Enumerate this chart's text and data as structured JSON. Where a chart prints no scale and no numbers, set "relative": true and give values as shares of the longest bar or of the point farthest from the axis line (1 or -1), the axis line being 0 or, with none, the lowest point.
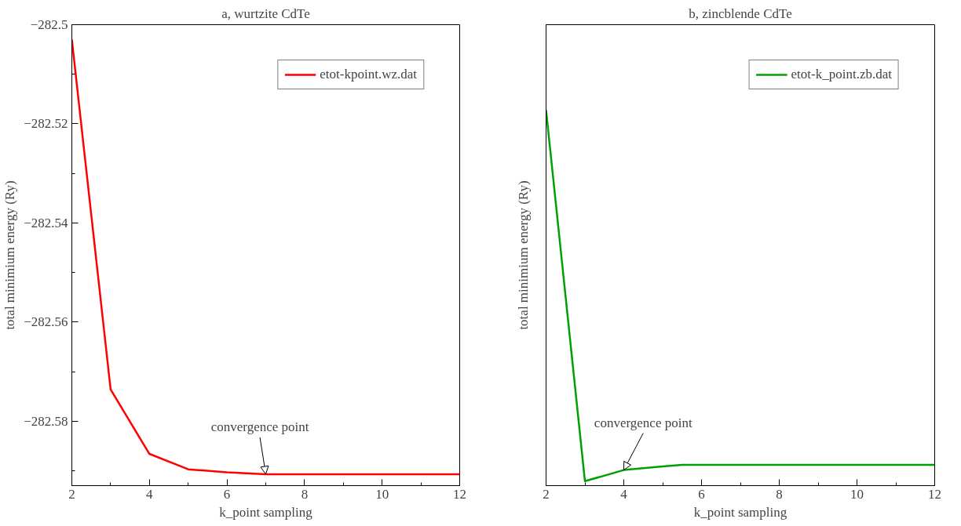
{
  "chart_data": [
    {
      "type": "line",
      "title": "a, wurtzite CdTe",
      "xlabel": "k_point sampling",
      "ylabel": "total minimium energy (Ry)",
      "x": [
        2,
        3,
        4,
        5,
        6,
        7,
        8,
        9,
        10,
        11,
        12
      ],
      "series": [
        {
          "name": "etot-kpoint.wz.dat",
          "color": "#ff0000",
          "values": [
            -282.503,
            -282.5736,
            -282.5866,
            -282.5897,
            -282.5903,
            -282.5907,
            -282.5907,
            -282.5907,
            -282.5907,
            -282.5907,
            -282.5907
          ]
        }
      ],
      "xlim": [
        2,
        12
      ],
      "xticks": [
        2,
        4,
        6,
        8,
        10,
        12
      ],
      "ylim": [
        -282.593,
        -282.5
      ],
      "yticks": [
        -282.5,
        -282.52,
        -282.54,
        -282.56,
        -282.58
      ],
      "annotations": [
        {
          "text": "convergence point",
          "x": 7,
          "y": -282.5907
        }
      ],
      "legend": "top right",
      "grid": false,
      "marker": "none"
    },
    {
      "type": "line",
      "title": "b, zincblende CdTe",
      "xlabel": "k_point sampling",
      "ylabel": "total minimium energy (Ry)",
      "x": [
        2,
        3,
        4,
        5,
        5.5,
        6,
        7,
        8,
        9,
        10,
        11,
        12
      ],
      "series": [
        {
          "name": "etot-k_point.zb.dat",
          "color": "#00a000",
          "values": [
            1,
            0,
            0.03,
            0.04,
            0.044,
            0.044,
            0.044,
            0.044,
            0.044,
            0.044,
            0.044,
            0.044
          ]
        }
      ],
      "relative": true,
      "xlim": [
        2,
        12
      ],
      "xticks": [
        2,
        4,
        6,
        8,
        10,
        12
      ],
      "annotations": [
        {
          "text": "convergence point",
          "x": 4,
          "y": 0.03
        }
      ],
      "legend": "top right",
      "grid": false,
      "marker": "none"
    }
  ]
}
